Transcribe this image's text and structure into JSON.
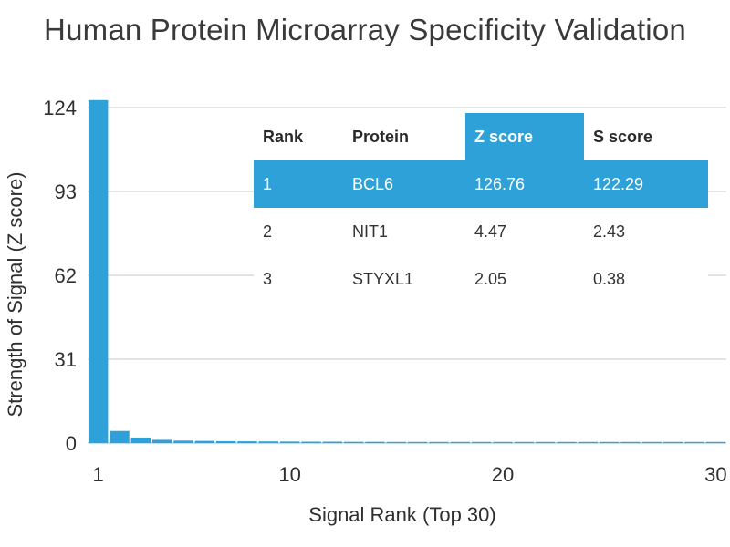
{
  "chart_data": {
    "type": "bar",
    "title": "Human Protein Microarray Specificity Validation",
    "xlabel": "Signal Rank (Top 30)",
    "ylabel": "Strength of Signal (Z score)",
    "x": [
      1,
      2,
      3,
      4,
      5,
      6,
      7,
      8,
      9,
      10,
      11,
      12,
      13,
      14,
      15,
      16,
      17,
      18,
      19,
      20,
      21,
      22,
      23,
      24,
      25,
      26,
      27,
      28,
      29,
      30
    ],
    "values": [
      126.76,
      4.47,
      2.05,
      1.2,
      0.9,
      0.8,
      0.7,
      0.65,
      0.6,
      0.55,
      0.5,
      0.5,
      0.45,
      0.45,
      0.4,
      0.4,
      0.4,
      0.35,
      0.35,
      0.35,
      0.3,
      0.3,
      0.3,
      0.3,
      0.25,
      0.25,
      0.25,
      0.25,
      0.2,
      0.2
    ],
    "ylim": [
      0,
      124
    ],
    "yticks": [
      0,
      31,
      62,
      93,
      124
    ],
    "xticks": [
      1,
      10,
      20,
      30
    ],
    "grid": true,
    "bar_color": "#2ea1d8",
    "highlight_color": "#2ea1d8",
    "table": {
      "columns": [
        "Rank",
        "Protein",
        "Z score",
        "S score"
      ],
      "rows": [
        [
          "1",
          "BCL6",
          "126.76",
          "122.29"
        ],
        [
          "2",
          "NIT1",
          "4.47",
          "2.43"
        ],
        [
          "3",
          "STYXL1",
          "2.05",
          "0.38"
        ]
      ],
      "highlight_column": 2,
      "highlight_row": 0
    }
  }
}
